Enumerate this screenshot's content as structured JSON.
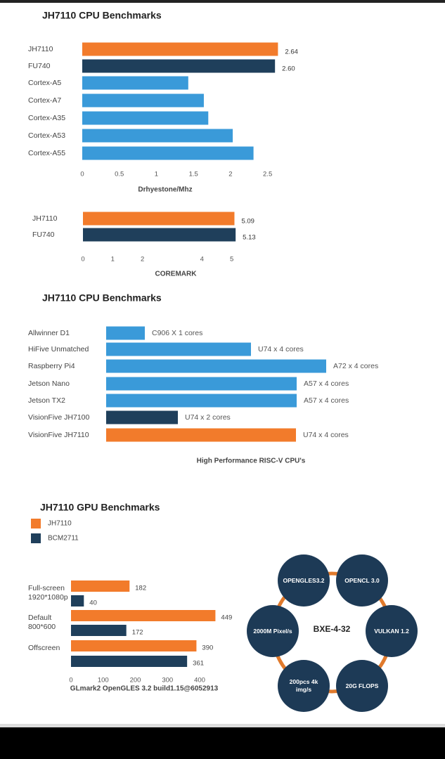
{
  "chart_data": [
    {
      "type": "bar",
      "orientation": "horizontal",
      "title": "JH7110 CPU Benchmarks",
      "categories": [
        "JH7110",
        "FU740",
        "Cortex-A5",
        "Cortex-A7",
        "Cortex-A35",
        "Cortex-A53",
        "Cortex-A55"
      ],
      "values": [
        2.64,
        2.6,
        1.43,
        1.64,
        1.7,
        2.03,
        2.31
      ],
      "value_labels": [
        "2.64",
        "2.60",
        null,
        null,
        null,
        null,
        null
      ],
      "colors": [
        "#f27b2b",
        "#1f3f5b",
        "#3a9ad9",
        "#3a9ad9",
        "#3a9ad9",
        "#3a9ad9",
        "#3a9ad9"
      ],
      "xlim": [
        0,
        2.75
      ],
      "xticks": [
        0,
        0.5,
        1,
        1.5,
        2,
        2.5
      ],
      "xlabel": "Drhyestone/Mhz"
    },
    {
      "type": "bar",
      "orientation": "horizontal",
      "categories": [
        "JH7110",
        "FU740"
      ],
      "values": [
        5.09,
        5.13
      ],
      "value_labels": [
        "5.09",
        "5.13"
      ],
      "colors": [
        "#f27b2b",
        "#1f3f5b"
      ],
      "xlim": [
        0,
        6
      ],
      "xticks": [
        0,
        1,
        2,
        4,
        5
      ],
      "xlabel": "COREMARK"
    },
    {
      "type": "bar",
      "orientation": "horizontal",
      "title": "JH7110 CPU Benchmarks",
      "categories": [
        "Allwinner D1",
        "HiFive Unmatched",
        "Raspberry Pi4",
        "Jetson Nano",
        "Jetson TX2",
        "VisionFive JH7100",
        "VisionFive JH7110"
      ],
      "values": [
        55,
        206,
        313,
        271,
        271,
        102,
        270
      ],
      "annotations": [
        "C906 X 1 cores",
        "U74 x 4 cores",
        "A72 x 4 cores",
        "A57 x 4 cores",
        "A57 x 4 cores",
        "U74 x 2 cores",
        "U74 x 4 cores"
      ],
      "colors": [
        "#3a9ad9",
        "#3a9ad9",
        "#3a9ad9",
        "#3a9ad9",
        "#3a9ad9",
        "#1f3f5b",
        "#f27b2b"
      ],
      "xlim": [
        0,
        340
      ],
      "xlabel": "High Performance RISC-V CPU's"
    },
    {
      "type": "grouped-bar",
      "orientation": "horizontal",
      "title": "JH7110 GPU Benchmarks",
      "categories": [
        "Full-screen 1920*1080p",
        "Default 800*600",
        "Offscreen"
      ],
      "series": [
        {
          "name": "JH7110",
          "color": "#f27b2b",
          "values": [
            182,
            449,
            390
          ]
        },
        {
          "name": "BCM2711",
          "color": "#1f3f5b",
          "values": [
            40,
            172,
            361
          ]
        }
      ],
      "xlim": [
        0,
        480
      ],
      "xticks": [
        0,
        100,
        200,
        300,
        400
      ],
      "xlabel": "GLmark2 OpenGLES 3.2 build1.15@6052913"
    }
  ],
  "diagram": {
    "center": "BXE-4-32",
    "nodes": [
      {
        "label": "OPENGLES3.2"
      },
      {
        "label": "OPENCL 3.0"
      },
      {
        "label": "VULKAN 1.2"
      },
      {
        "label": "20G FLOPS"
      },
      {
        "label": "200pcs 4k img/s"
      },
      {
        "label": "2000M Pixel/s"
      }
    ]
  }
}
